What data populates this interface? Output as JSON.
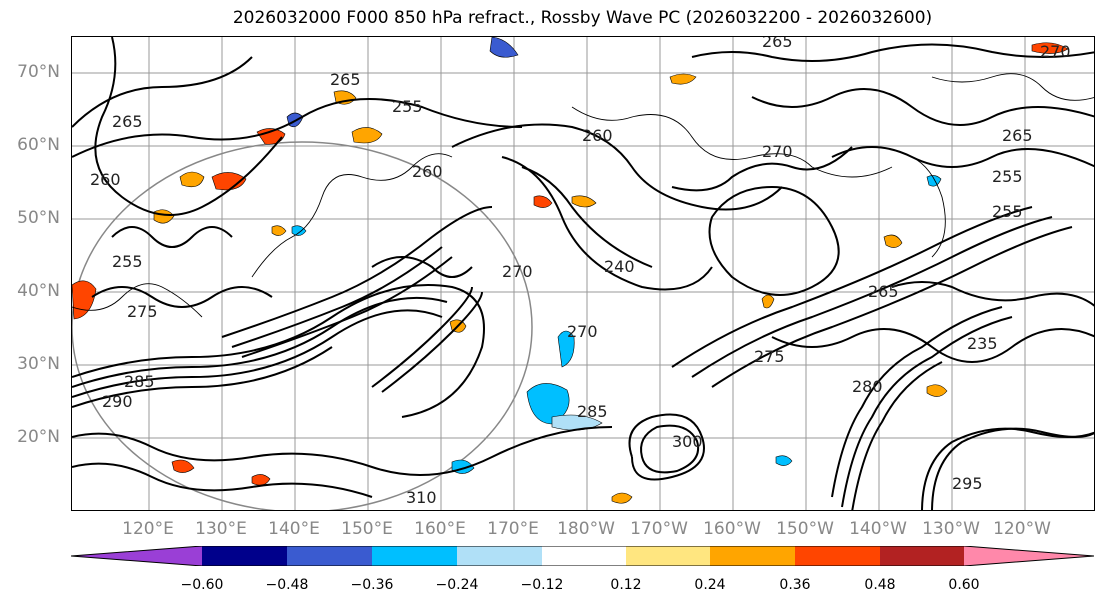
{
  "header": {
    "title": "2026032000 F000 850 hPa refract., Rossby Wave PC (2026032200 - 2026032600)"
  },
  "map": {
    "lat_labels": [
      "70°N",
      "60°N",
      "50°N",
      "40°N",
      "30°N",
      "20°N"
    ],
    "lon_labels": [
      "120°E",
      "130°E",
      "140°E",
      "150°E",
      "160°E",
      "170°E",
      "180°W",
      "170°W",
      "160°W",
      "150°W",
      "140°W",
      "130°W",
      "120°W"
    ],
    "contour_labels": [
      "265",
      "270",
      "265",
      "255",
      "260",
      "265",
      "260",
      "270",
      "255",
      "255",
      "265",
      "260",
      "255",
      "270",
      "265",
      "270",
      "275",
      "285",
      "300",
      "310",
      "290",
      "295",
      "235",
      "285",
      "275",
      "240",
      "280"
    ],
    "contour_color": "#000000",
    "grid_color": "#999999",
    "coastline_color": "#000000"
  },
  "colorbar": {
    "ticks": [
      "−0.60",
      "−0.48",
      "−0.36",
      "−0.24",
      "−0.12",
      "0.12",
      "0.24",
      "0.36",
      "0.48",
      "0.60"
    ],
    "colors": [
      "#9a3fd6",
      "#00008b",
      "#3a5bd0",
      "#00bfff",
      "#b0e0f7",
      "#ffffff",
      "#ffe680",
      "#ffa500",
      "#ff4500",
      "#b22222",
      "#ff88aa"
    ]
  }
}
